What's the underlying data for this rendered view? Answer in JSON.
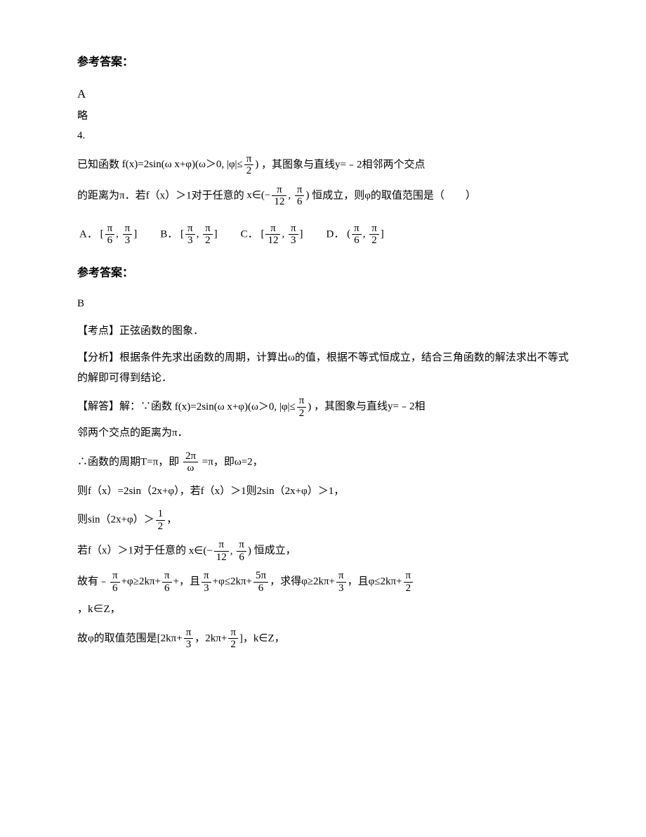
{
  "heading_answer": "参考答案：",
  "answer_text": "A",
  "lue": "略",
  "q_num": "4.",
  "q4_part1a": "已知函数",
  "q4_func1_a": "f(x)=2sin(ω x+φ)(ω＞0, |φ|≤",
  "q4_func1_b": ")",
  "q4_part1b": "，其图象与直线y=﹣2相邻两个交点",
  "q4_part2a": "的距离为π．若f（x）＞1对于任意的",
  "q4_interval_a": "x∈(−",
  "q4_interval_comma": ", ",
  "q4_interval_b": ")",
  "q4_part2b": "恒成立，则φ的取值范围是（　　）",
  "options": {
    "A": {
      "label": "A．"
    },
    "B": {
      "label": "B．"
    },
    "C": {
      "label": "C．"
    },
    "D": {
      "label": "D．"
    }
  },
  "answer_heading2": "参考答案：",
  "answer_B": "B",
  "kaodian": "【考点】正弦函数的图象．",
  "fenxi": "【分析】根据条件先求出函数的周期，计算出ω的值，根据不等式恒成立，结合三角函数的解法求出不等式的解即可得到结论．",
  "jieda_label": "【解答】解：∵函数",
  "jieda_func_a": "f(x)=2sin(ω x+φ)(ω＞0, |φ|≤",
  "jieda_func_b": ")",
  "jieda_tail1": "，其图象与直线y=﹣2相",
  "jieda_line2": "邻两个交点的距离为π．",
  "line_t_a": "∴函数的周期T=π，即",
  "line_t_b": "=π，即ω=2，",
  "line_fx": "则f（x）=2sin（2x+φ），若f（x）＞1则2sin（2x+φ）＞1，",
  "line_sin_a": "则sin（2x+φ）＞",
  "line_sin_b": "，",
  "line_ruo_a": "若f（x）＞1对于任意的",
  "line_ruo_b": "恒成立，",
  "line_guyou_a": "故有﹣",
  "line_guyou_b": "+φ≥2kπ+",
  "line_guyou_c": "+，且",
  "line_guyou_d": "+φ≤2kπ+",
  "line_guyou_e": "，求得φ≥2kπ+",
  "line_guyou_f": "，且φ≤2kπ+",
  "line_guyou_g": "",
  "line_kz": "，k∈Z，",
  "line_last_a": "故φ的取值范围是[2kπ+",
  "line_last_b": "，2kπ+",
  "line_last_c": "]，k∈Z，",
  "frac": {
    "pi": "π",
    "n2pi": "2π",
    "n5pi": "5π",
    "d2": "2",
    "d3": "3",
    "d6": "6",
    "d12": "12",
    "omega": "ω",
    "one": "1"
  }
}
